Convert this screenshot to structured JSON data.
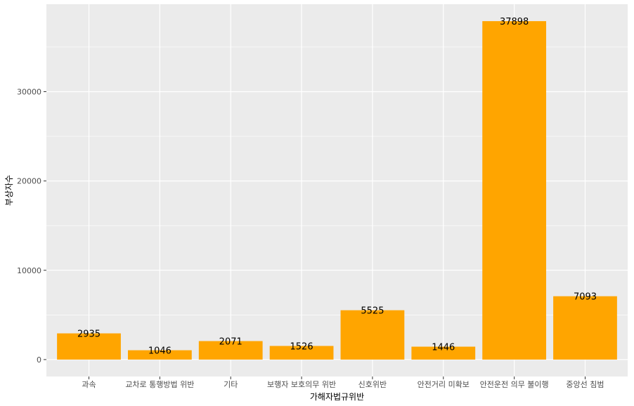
{
  "chart_data": {
    "type": "bar",
    "title": "",
    "xlabel": "가해자법규위반",
    "ylabel": "부상자수",
    "categories": [
      "과속",
      "교차로 통행방법 위반",
      "기타",
      "보행자 보호의무 위반",
      "신호위반",
      "안전거리 미확보",
      "안전운전 의무 불이행",
      "중앙선 침범"
    ],
    "values": [
      2935,
      1046,
      2071,
      1526,
      5525,
      1446,
      37898,
      7093
    ],
    "y_ticks": [
      0,
      10000,
      20000,
      30000
    ],
    "y_tick_labels": [
      "0",
      "10000",
      "20000",
      "30000"
    ],
    "ylim": [
      -1895,
      39793
    ],
    "grid": true,
    "legend": "none",
    "colors": {
      "bar": "#FFA500",
      "panel": "#EBEBEB",
      "grid_major": "#FFFFFF",
      "text": "#4D4D4D"
    }
  }
}
